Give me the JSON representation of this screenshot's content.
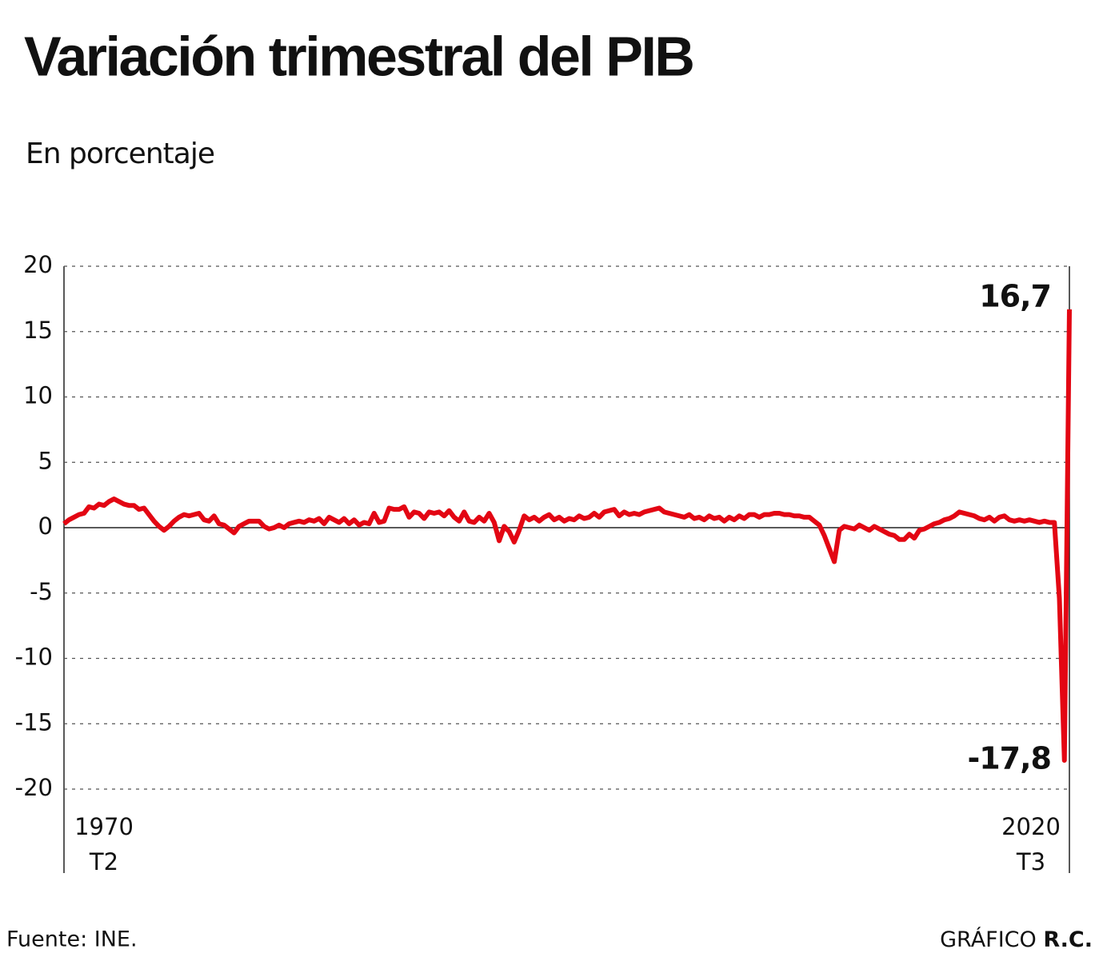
{
  "chart_data": {
    "type": "line",
    "title": "Variación trimestral del PIB",
    "subtitle": "En porcentaje",
    "source": "Fuente: INE.",
    "credit": {
      "text": "GRÁFICO",
      "author": "R.C."
    },
    "categories": [
      "1970\nT2",
      null,
      null,
      null,
      null,
      null,
      null,
      null,
      null,
      null,
      null,
      null,
      null,
      null,
      null,
      null,
      null,
      null,
      null,
      null,
      null,
      null,
      null,
      null,
      null,
      null,
      null,
      null,
      null,
      null,
      null,
      null,
      null,
      null,
      null,
      null,
      null,
      null,
      null,
      null,
      null,
      null,
      null,
      null,
      null,
      null,
      null,
      null,
      null,
      null,
      null,
      null,
      null,
      null,
      null,
      null,
      null,
      null,
      null,
      null,
      null,
      null,
      null,
      null,
      null,
      null,
      null,
      null,
      null,
      null,
      null,
      null,
      null,
      null,
      null,
      null,
      null,
      null,
      null,
      null,
      null,
      null,
      null,
      null,
      null,
      null,
      null,
      null,
      null,
      null,
      null,
      null,
      null,
      null,
      null,
      null,
      null,
      null,
      null,
      null,
      null,
      null,
      null,
      null,
      null,
      null,
      null,
      null,
      null,
      null,
      null,
      null,
      null,
      null,
      null,
      null,
      null,
      null,
      null,
      null,
      null,
      null,
      null,
      null,
      null,
      null,
      null,
      null,
      null,
      null,
      null,
      null,
      null,
      null,
      null,
      null,
      null,
      null,
      null,
      null,
      null,
      null,
      null,
      null,
      null,
      null,
      null,
      null,
      null,
      null,
      null,
      null,
      null,
      null,
      null,
      null,
      null,
      null,
      null,
      null,
      null,
      null,
      null,
      null,
      null,
      null,
      null,
      null,
      null,
      null,
      null,
      null,
      null,
      null,
      null,
      null,
      null,
      null,
      null,
      null,
      null,
      null,
      null,
      null,
      null,
      null,
      null,
      null,
      null,
      null,
      null,
      null,
      null,
      null,
      null,
      null,
      null,
      null,
      null,
      null,
      null,
      "2020\nT3"
    ],
    "series": [
      {
        "color": "#e30613",
        "values": [
          0.3,
          0.6,
          0.8,
          1.0,
          1.1,
          1.6,
          1.5,
          1.8,
          1.7,
          2.0,
          2.2,
          2.0,
          1.8,
          1.7,
          1.7,
          1.4,
          1.5,
          1.0,
          0.5,
          0.1,
          -0.2,
          0.1,
          0.5,
          0.8,
          1.0,
          0.9,
          1.0,
          1.1,
          0.6,
          0.5,
          0.9,
          0.3,
          0.2,
          -0.1,
          -0.4,
          0.1,
          0.3,
          0.5,
          0.5,
          0.5,
          0.1,
          -0.1,
          0.0,
          0.2,
          0.0,
          0.3,
          0.4,
          0.5,
          0.4,
          0.6,
          0.5,
          0.7,
          0.3,
          0.8,
          0.6,
          0.4,
          0.7,
          0.3,
          0.6,
          0.2,
          0.4,
          0.3,
          1.1,
          0.4,
          0.5,
          1.5,
          1.4,
          1.4,
          1.6,
          0.8,
          1.2,
          1.1,
          0.7,
          1.2,
          1.1,
          1.2,
          0.9,
          1.3,
          0.8,
          0.5,
          1.2,
          0.5,
          0.4,
          0.8,
          0.5,
          1.1,
          0.4,
          -1.0,
          0.1,
          -0.3,
          -1.1,
          -0.2,
          0.9,
          0.6,
          0.8,
          0.5,
          0.8,
          1.0,
          0.6,
          0.8,
          0.5,
          0.7,
          0.6,
          0.9,
          0.7,
          0.8,
          1.1,
          0.8,
          1.2,
          1.3,
          1.4,
          0.9,
          1.2,
          1.0,
          1.1,
          1.0,
          1.2,
          1.3,
          1.4,
          1.5,
          1.2,
          1.1,
          1.0,
          0.9,
          0.8,
          1.0,
          0.7,
          0.8,
          0.6,
          0.9,
          0.7,
          0.8,
          0.5,
          0.8,
          0.6,
          0.9,
          0.7,
          1.0,
          1.0,
          0.8,
          1.0,
          1.0,
          1.1,
          1.1,
          1.0,
          1.0,
          0.9,
          0.9,
          0.8,
          0.8,
          0.5,
          0.2,
          -0.6,
          -1.6,
          -2.6,
          -0.2,
          0.1,
          0.0,
          -0.1,
          0.2,
          0.0,
          -0.2,
          0.1,
          -0.1,
          -0.3,
          -0.5,
          -0.6,
          -0.9,
          -0.9,
          -0.5,
          -0.8,
          -0.2,
          -0.1,
          0.1,
          0.3,
          0.4,
          0.6,
          0.7,
          0.9,
          1.2,
          1.1,
          1.0,
          0.9,
          0.7,
          0.6,
          0.8,
          0.5,
          0.8,
          0.9,
          0.6,
          0.5,
          0.6,
          0.5,
          0.6,
          0.5,
          0.4,
          0.5,
          0.4,
          0.4,
          -5.4,
          -17.8,
          16.7
        ],
        "value_labels": [
          null,
          null,
          null,
          null,
          null,
          null,
          null,
          null,
          null,
          null,
          null,
          null,
          null,
          null,
          null,
          null,
          null,
          null,
          null,
          null,
          null,
          null,
          null,
          null,
          null,
          null,
          null,
          null,
          null,
          null,
          null,
          null,
          null,
          null,
          null,
          null,
          null,
          null,
          null,
          null,
          null,
          null,
          null,
          null,
          null,
          null,
          null,
          null,
          null,
          null,
          null,
          null,
          null,
          null,
          null,
          null,
          null,
          null,
          null,
          null,
          null,
          null,
          null,
          null,
          null,
          null,
          null,
          null,
          null,
          null,
          null,
          null,
          null,
          null,
          null,
          null,
          null,
          null,
          null,
          null,
          null,
          null,
          null,
          null,
          null,
          null,
          null,
          null,
          null,
          null,
          null,
          null,
          null,
          null,
          null,
          null,
          null,
          null,
          null,
          null,
          null,
          null,
          null,
          null,
          null,
          null,
          null,
          null,
          null,
          null,
          null,
          null,
          null,
          null,
          null,
          null,
          null,
          null,
          null,
          null,
          null,
          null,
          null,
          null,
          null,
          null,
          null,
          null,
          null,
          null,
          null,
          null,
          null,
          null,
          null,
          null,
          null,
          null,
          null,
          null,
          null,
          null,
          null,
          null,
          null,
          null,
          null,
          null,
          null,
          null,
          null,
          null,
          null,
          null,
          null,
          null,
          null,
          null,
          null,
          null,
          null,
          null,
          null,
          null,
          null,
          null,
          null,
          null,
          null,
          null,
          null,
          null,
          null,
          null,
          null,
          null,
          null,
          null,
          null,
          null,
          null,
          null,
          null,
          null,
          null,
          null,
          null,
          null,
          null,
          null,
          null,
          null,
          null,
          null,
          null,
          null,
          null,
          null,
          null,
          null,
          "-17,8",
          "16,7"
        ]
      }
    ],
    "ylim": [
      -20,
      20
    ],
    "yticks": [
      -20,
      -15,
      -10,
      -5,
      0,
      5,
      10,
      15,
      20
    ],
    "grid": true
  }
}
